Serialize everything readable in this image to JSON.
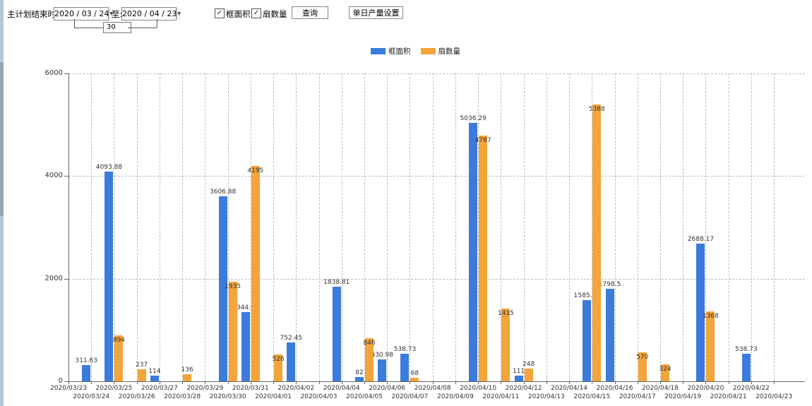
{
  "toolbar": {
    "end_time_label": "主计划结束时间:",
    "start_date": "2020 / 03 / 24",
    "to_label": "至:",
    "end_date": "2020 / 04 / 23",
    "interval_days": "30",
    "checkboxes": [
      {
        "label": "框面积",
        "checked": true
      },
      {
        "label": "扇数量",
        "checked": true
      }
    ],
    "query_button": "查询",
    "daily_output_button": "单日产量设置"
  },
  "icons": {
    "check": "✓",
    "dropdown_arrow": "▼"
  },
  "chart_data": {
    "type": "bar",
    "title": "",
    "xlabel": "",
    "ylabel": "",
    "ylim": [
      0,
      6000
    ],
    "yticks": [
      0,
      2000,
      4000,
      6000
    ],
    "grid": "dashed",
    "legend_position": "top-center",
    "x_label_rows": "staggered",
    "categories": [
      "2020/03/23",
      "2020/03/24",
      "2020/03/25",
      "2020/03/26",
      "2020/03/27",
      "2020/03/28",
      "2020/03/29",
      "2020/03/30",
      "2020/03/31",
      "2020/04/01",
      "2020/04/02",
      "2020/04/03",
      "2020/04/04",
      "2020/04/05",
      "2020/04/06",
      "2020/04/07",
      "2020/04/08",
      "2020/04/09",
      "2020/04/10",
      "2020/04/11",
      "2020/04/12",
      "2020/04/13",
      "2020/04/14",
      "2020/04/15",
      "2020/04/16",
      "2020/04/17",
      "2020/04/18",
      "2020/04/19",
      "2020/04/20",
      "2020/04/21",
      "2020/04/22",
      "2020/04/23"
    ],
    "series": [
      {
        "name": "框面积",
        "color": "#3B7BDB",
        "values": [
          null,
          311.63,
          4093.88,
          null,
          114,
          null,
          null,
          3606.88,
          1344.95,
          null,
          752.45,
          null,
          1838.81,
          82,
          430.98,
          538.73,
          null,
          null,
          5036.29,
          null,
          111,
          null,
          null,
          1585.96,
          1798.5,
          null,
          null,
          null,
          2688.17,
          null,
          538.73,
          null
        ]
      },
      {
        "name": "扇数量",
        "color": "#F3A43A",
        "values": [
          null,
          null,
          894,
          237,
          null,
          136,
          null,
          1935,
          4195,
          526,
          null,
          null,
          null,
          846,
          null,
          68,
          null,
          null,
          4787,
          1415,
          248,
          null,
          null,
          5388,
          null,
          570,
          324,
          null,
          1368,
          null,
          null,
          null
        ]
      }
    ]
  }
}
